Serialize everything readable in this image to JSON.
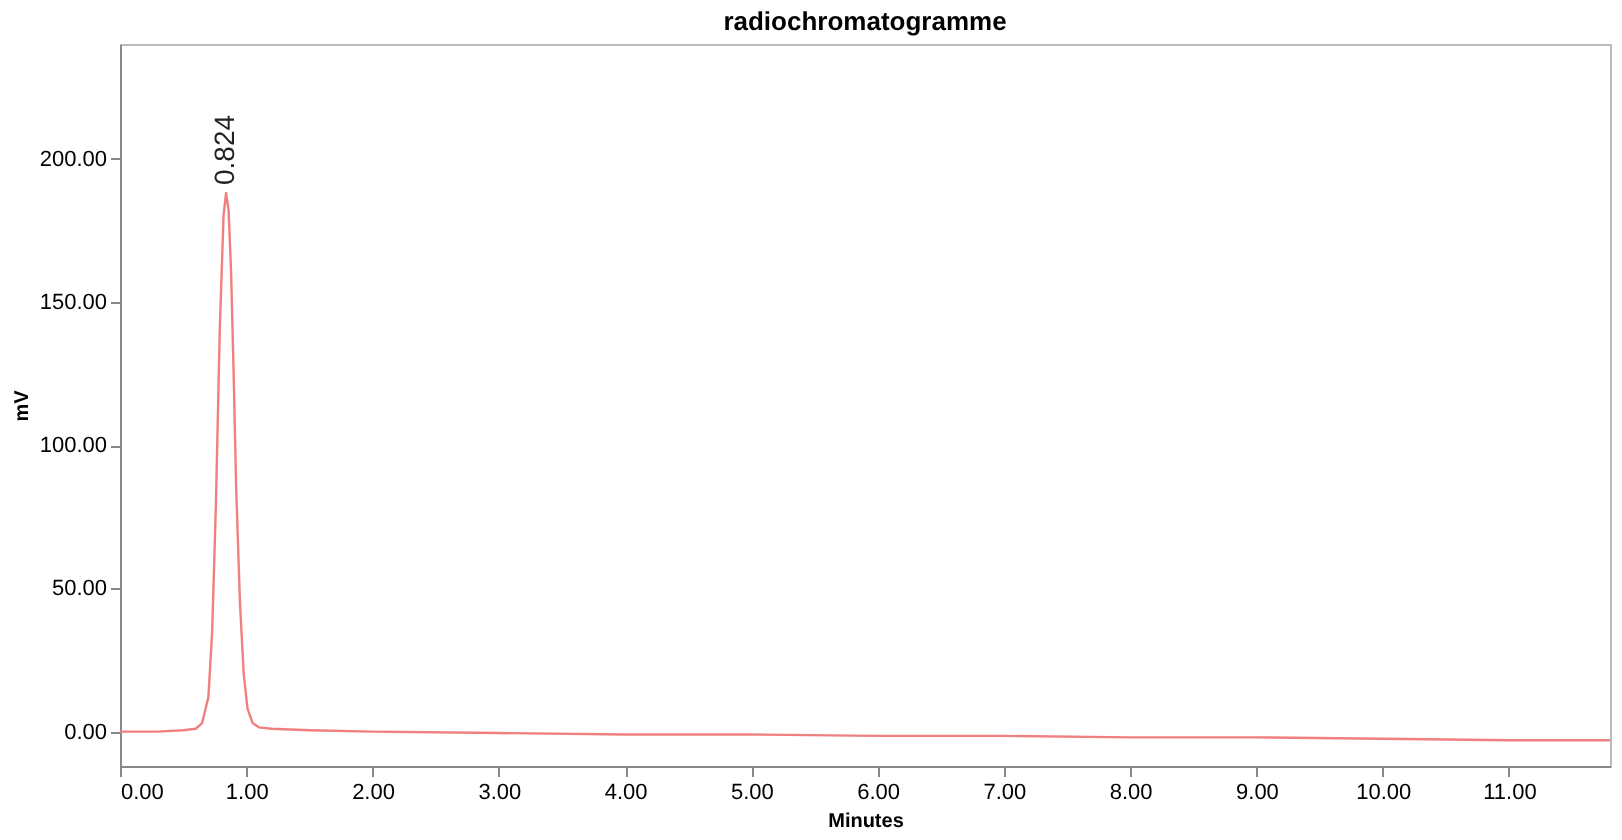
{
  "chart_data": {
    "type": "line",
    "title": "radiochromatogramme",
    "xlabel": "Minutes",
    "ylabel": "mV",
    "x": [
      0,
      0.3,
      0.5,
      0.6,
      0.65,
      0.7,
      0.73,
      0.76,
      0.79,
      0.82,
      0.84,
      0.86,
      0.88,
      0.9,
      0.92,
      0.95,
      0.98,
      1.01,
      1.05,
      1.1,
      1.2,
      1.5,
      2,
      3,
      4,
      5,
      6,
      7,
      8,
      9,
      10,
      11,
      11.8
    ],
    "series": [
      {
        "color": "#f08080",
        "values": [
          0,
          0,
          0.5,
          1,
          3,
          12,
          35,
          80,
          140,
          180,
          188,
          182,
          160,
          125,
          85,
          45,
          20,
          8,
          3,
          1.5,
          1,
          0.5,
          0,
          -0.5,
          -1,
          -1,
          -1.5,
          -1.5,
          -2,
          -2,
          -2.5,
          -3,
          -3
        ]
      }
    ],
    "xlim": [
      0,
      11.8
    ],
    "ylim": [
      -12,
      240
    ],
    "xticks": [
      {
        "value": 0,
        "label": "0.00"
      },
      {
        "value": 1,
        "label": "1.00"
      },
      {
        "value": 2,
        "label": "2.00"
      },
      {
        "value": 3,
        "label": "3.00"
      },
      {
        "value": 4,
        "label": "4.00"
      },
      {
        "value": 5,
        "label": "5.00"
      },
      {
        "value": 6,
        "label": "6.00"
      },
      {
        "value": 7,
        "label": "7.00"
      },
      {
        "value": 8,
        "label": "8.00"
      },
      {
        "value": 9,
        "label": "9.00"
      },
      {
        "value": 10,
        "label": "10.00"
      },
      {
        "value": 11,
        "label": "11.00"
      }
    ],
    "yticks": [
      {
        "value": 0,
        "label": "0.00"
      },
      {
        "value": 50,
        "label": "50.00"
      },
      {
        "value": 100,
        "label": "100.00"
      },
      {
        "value": 150,
        "label": "150.00"
      },
      {
        "value": 200,
        "label": "200.00"
      }
    ],
    "annotations": [
      {
        "text": "0.824",
        "x": 0.84,
        "y": 188
      }
    ],
    "grid": false,
    "marker": "none",
    "line_style": "solid"
  }
}
